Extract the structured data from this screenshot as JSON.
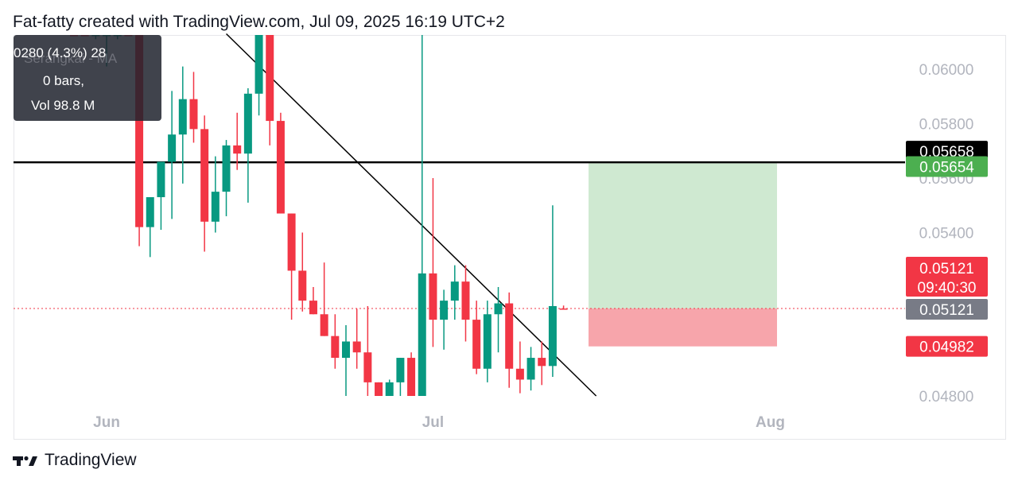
{
  "header": {
    "text": "Fat-fatty created with TradingView.com, Jul 09, 2025 16:19 UTC+2"
  },
  "footer": {
    "brand": "TradingView"
  },
  "tooltip": {
    "line1": "0280 (4.3%) 28",
    "line1_ghost": "Serangkai - MA",
    "line2": "0 bars,",
    "line3": "Vol 98.8 M"
  },
  "colors": {
    "up": "#089981",
    "down": "#f23645",
    "profit_zone": "#cfe9d1",
    "loss_zone": "#f7a5ab",
    "label_neutral": "#787b86"
  },
  "chart_data": {
    "type": "candlestick",
    "x_ticks": [
      "Jun",
      "Jul",
      "Aug"
    ],
    "y_ticks": [
      "0.06000",
      "0.05800",
      "0.05600",
      "0.05400",
      "0.04800"
    ],
    "ylim": [
      0.048,
      0.0613
    ],
    "price_labels": [
      {
        "text": "0.05658",
        "style": "black"
      },
      {
        "text": "0.05654",
        "style": "green"
      },
      {
        "text": "0.05121",
        "text2": "09:40:30",
        "style": "red"
      },
      {
        "text": "0.05121",
        "style": "gray"
      },
      {
        "text": "0.04982",
        "style": "red"
      }
    ],
    "horizontal_line": 0.05658,
    "current_price": 0.05121,
    "long_position": {
      "entry": 0.05121,
      "target": 0.05654,
      "stop": 0.04982
    },
    "trendline": {
      "from": {
        "date": "2025-06-12",
        "price": 0.0613
      },
      "to": {
        "date": "2025-07-16",
        "price": 0.048
      }
    },
    "candles": [
      {
        "date": "2025-05-29",
        "open": 0.0613,
        "high": 0.0613,
        "low": 0.0613,
        "close": 0.0613,
        "dir": "down"
      },
      {
        "date": "2025-05-30",
        "open": 0.0613,
        "high": 0.0613,
        "low": 0.0613,
        "close": 0.0613,
        "dir": "down"
      },
      {
        "date": "2025-05-31",
        "open": 0.0613,
        "high": 0.0613,
        "low": 0.0611,
        "close": 0.0613,
        "dir": "up"
      },
      {
        "date": "2025-06-01",
        "open": 0.0613,
        "high": 0.0613,
        "low": 0.0601,
        "close": 0.0613,
        "dir": "up"
      },
      {
        "date": "2025-06-02",
        "open": 0.0613,
        "high": 0.0613,
        "low": 0.0611,
        "close": 0.0613,
        "dir": "up"
      },
      {
        "date": "2025-06-03",
        "open": 0.0613,
        "high": 0.0613,
        "low": 0.0613,
        "close": 0.0613,
        "dir": "down"
      },
      {
        "date": "2025-06-04",
        "open": 0.0613,
        "high": 0.0613,
        "low": 0.0535,
        "close": 0.0542,
        "dir": "down"
      },
      {
        "date": "2025-06-05",
        "open": 0.0542,
        "high": 0.0553,
        "low": 0.0531,
        "close": 0.0553,
        "dir": "up"
      },
      {
        "date": "2025-06-06",
        "open": 0.0553,
        "high": 0.0566,
        "low": 0.0541,
        "close": 0.0566,
        "dir": "up"
      },
      {
        "date": "2025-06-07",
        "open": 0.0566,
        "high": 0.0592,
        "low": 0.0545,
        "close": 0.0576,
        "dir": "up"
      },
      {
        "date": "2025-06-08",
        "open": 0.0576,
        "high": 0.0601,
        "low": 0.0558,
        "close": 0.0589,
        "dir": "up"
      },
      {
        "date": "2025-06-09",
        "open": 0.0589,
        "high": 0.0599,
        "low": 0.0573,
        "close": 0.0578,
        "dir": "down"
      },
      {
        "date": "2025-06-10",
        "open": 0.0578,
        "high": 0.0583,
        "low": 0.0533,
        "close": 0.0544,
        "dir": "down"
      },
      {
        "date": "2025-06-11",
        "open": 0.0544,
        "high": 0.0568,
        "low": 0.054,
        "close": 0.0555,
        "dir": "up"
      },
      {
        "date": "2025-06-12",
        "open": 0.0555,
        "high": 0.0574,
        "low": 0.0546,
        "close": 0.0572,
        "dir": "up"
      },
      {
        "date": "2025-06-13",
        "open": 0.0572,
        "high": 0.0584,
        "low": 0.0563,
        "close": 0.0569,
        "dir": "down"
      },
      {
        "date": "2025-06-14",
        "open": 0.0569,
        "high": 0.0593,
        "low": 0.0551,
        "close": 0.0591,
        "dir": "up"
      },
      {
        "date": "2025-06-15",
        "open": 0.0591,
        "high": 0.0613,
        "low": 0.0583,
        "close": 0.0613,
        "dir": "up"
      },
      {
        "date": "2025-06-16",
        "open": 0.0613,
        "high": 0.0613,
        "low": 0.0572,
        "close": 0.0581,
        "dir": "down"
      },
      {
        "date": "2025-06-17",
        "open": 0.0581,
        "high": 0.0584,
        "low": 0.0547,
        "close": 0.0547,
        "dir": "down"
      },
      {
        "date": "2025-06-18",
        "open": 0.0547,
        "high": 0.0547,
        "low": 0.0508,
        "close": 0.0526,
        "dir": "down"
      },
      {
        "date": "2025-06-19",
        "open": 0.0526,
        "high": 0.054,
        "low": 0.0511,
        "close": 0.0515,
        "dir": "down"
      },
      {
        "date": "2025-06-20",
        "open": 0.0515,
        "high": 0.052,
        "low": 0.051,
        "close": 0.051,
        "dir": "down"
      },
      {
        "date": "2025-06-21",
        "open": 0.051,
        "high": 0.0529,
        "low": 0.0502,
        "close": 0.0502,
        "dir": "down"
      },
      {
        "date": "2025-06-22",
        "open": 0.0502,
        "high": 0.051,
        "low": 0.049,
        "close": 0.0494,
        "dir": "down"
      },
      {
        "date": "2025-06-23",
        "open": 0.0494,
        "high": 0.0506,
        "low": 0.048,
        "close": 0.05,
        "dir": "up"
      },
      {
        "date": "2025-06-24",
        "open": 0.05,
        "high": 0.0512,
        "low": 0.049,
        "close": 0.0496,
        "dir": "down"
      },
      {
        "date": "2025-06-25",
        "open": 0.0496,
        "high": 0.0513,
        "low": 0.048,
        "close": 0.0485,
        "dir": "down"
      },
      {
        "date": "2025-06-26",
        "open": 0.0485,
        "high": 0.0485,
        "low": 0.048,
        "close": 0.048,
        "dir": "down"
      },
      {
        "date": "2025-06-27",
        "open": 0.048,
        "high": 0.0486,
        "low": 0.048,
        "close": 0.0485,
        "dir": "up"
      },
      {
        "date": "2025-06-28",
        "open": 0.0485,
        "high": 0.0494,
        "low": 0.048,
        "close": 0.0494,
        "dir": "up"
      },
      {
        "date": "2025-06-29",
        "open": 0.0494,
        "high": 0.0496,
        "low": 0.048,
        "close": 0.048,
        "dir": "down"
      },
      {
        "date": "2025-06-30",
        "open": 0.048,
        "high": 0.0613,
        "low": 0.048,
        "close": 0.0525,
        "dir": "up"
      },
      {
        "date": "2025-07-01",
        "open": 0.0525,
        "high": 0.056,
        "low": 0.0498,
        "close": 0.0508,
        "dir": "down"
      },
      {
        "date": "2025-07-02",
        "open": 0.0508,
        "high": 0.0519,
        "low": 0.0497,
        "close": 0.0515,
        "dir": "up"
      },
      {
        "date": "2025-07-03",
        "open": 0.0515,
        "high": 0.0528,
        "low": 0.0508,
        "close": 0.0522,
        "dir": "up"
      },
      {
        "date": "2025-07-04",
        "open": 0.0522,
        "high": 0.0528,
        "low": 0.05,
        "close": 0.0508,
        "dir": "down"
      },
      {
        "date": "2025-07-05",
        "open": 0.0508,
        "high": 0.0515,
        "low": 0.0488,
        "close": 0.049,
        "dir": "down"
      },
      {
        "date": "2025-07-06",
        "open": 0.049,
        "high": 0.0515,
        "low": 0.0485,
        "close": 0.051,
        "dir": "up"
      },
      {
        "date": "2025-07-07",
        "open": 0.051,
        "high": 0.052,
        "low": 0.0496,
        "close": 0.0514,
        "dir": "up"
      },
      {
        "date": "2025-07-08",
        "open": 0.0514,
        "high": 0.0518,
        "low": 0.0483,
        "close": 0.049,
        "dir": "down"
      },
      {
        "date": "2025-07-09",
        "open": 0.049,
        "high": 0.05,
        "low": 0.0481,
        "close": 0.0486,
        "dir": "down"
      },
      {
        "date": "2025-07-10",
        "open": 0.0486,
        "high": 0.0498,
        "low": 0.0482,
        "close": 0.0494,
        "dir": "up"
      },
      {
        "date": "2025-07-11",
        "open": 0.0494,
        "high": 0.05,
        "low": 0.0484,
        "close": 0.0491,
        "dir": "down"
      },
      {
        "date": "2025-07-12",
        "open": 0.0491,
        "high": 0.055,
        "low": 0.0487,
        "close": 0.0513,
        "dir": "up"
      },
      {
        "date": "2025-07-13",
        "open": 0.05121,
        "high": 0.05132,
        "low": 0.05121,
        "close": 0.05121,
        "dir": "down"
      }
    ]
  }
}
